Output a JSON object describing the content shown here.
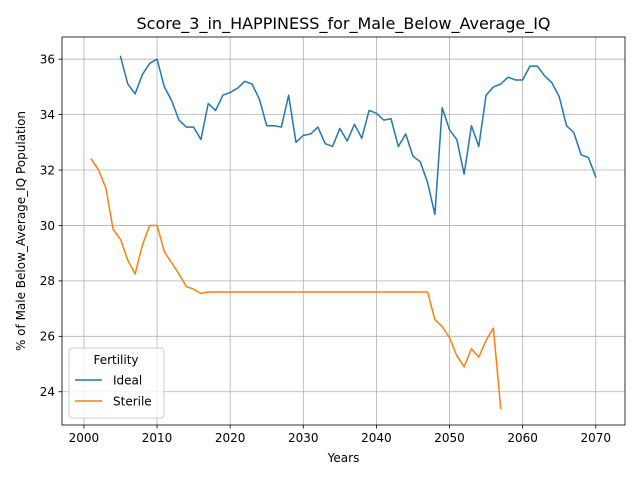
{
  "chart_data": {
    "type": "line",
    "title": "Score_3_in_HAPPINESS_for_Male_Below_Average_IQ",
    "xlabel": "Years",
    "ylabel": "% of Male Below_Average_IQ Population",
    "xlim": [
      1997,
      2074
    ],
    "ylim": [
      22.8,
      36.8
    ],
    "xticks": [
      2000,
      2010,
      2020,
      2030,
      2040,
      2050,
      2060,
      2070
    ],
    "yticks": [
      24,
      26,
      28,
      30,
      32,
      34,
      36
    ],
    "grid": true,
    "legend": {
      "title": "Fertility",
      "placement": "lower-left"
    },
    "series": [
      {
        "name": "Ideal",
        "color": "#1f77b4",
        "points": [
          [
            2005,
            36.1
          ],
          [
            2006,
            35.1
          ],
          [
            2007,
            34.75
          ],
          [
            2008,
            35.45
          ],
          [
            2009,
            35.85
          ],
          [
            2010,
            36.0
          ],
          [
            2011,
            35.0
          ],
          [
            2012,
            34.5
          ],
          [
            2013,
            33.8
          ],
          [
            2014,
            33.55
          ],
          [
            2015,
            33.55
          ],
          [
            2016,
            33.1
          ],
          [
            2017,
            34.4
          ],
          [
            2018,
            34.15
          ],
          [
            2019,
            34.7
          ],
          [
            2020,
            34.8
          ],
          [
            2021,
            34.95
          ],
          [
            2022,
            35.2
          ],
          [
            2023,
            35.1
          ],
          [
            2024,
            34.55
          ],
          [
            2025,
            33.6
          ],
          [
            2026,
            33.6
          ],
          [
            2027,
            33.55
          ],
          [
            2028,
            34.7
          ],
          [
            2029,
            33.0
          ],
          [
            2030,
            33.25
          ],
          [
            2031,
            33.3
          ],
          [
            2032,
            33.55
          ],
          [
            2033,
            32.95
          ],
          [
            2034,
            32.85
          ],
          [
            2035,
            33.5
          ],
          [
            2036,
            33.05
          ],
          [
            2037,
            33.65
          ],
          [
            2038,
            33.15
          ],
          [
            2039,
            34.15
          ],
          [
            2040,
            34.05
          ],
          [
            2041,
            33.8
          ],
          [
            2042,
            33.85
          ],
          [
            2043,
            32.85
          ],
          [
            2044,
            33.3
          ],
          [
            2045,
            32.5
          ],
          [
            2046,
            32.3
          ],
          [
            2047,
            31.55
          ],
          [
            2048,
            30.4
          ],
          [
            2049,
            34.25
          ],
          [
            2050,
            33.45
          ],
          [
            2051,
            33.1
          ],
          [
            2052,
            31.85
          ],
          [
            2053,
            33.6
          ],
          [
            2054,
            32.85
          ],
          [
            2055,
            34.7
          ],
          [
            2056,
            35.0
          ],
          [
            2057,
            35.1
          ],
          [
            2058,
            35.35
          ],
          [
            2059,
            35.25
          ],
          [
            2060,
            35.25
          ],
          [
            2061,
            35.75
          ],
          [
            2062,
            35.75
          ],
          [
            2063,
            35.4
          ],
          [
            2064,
            35.15
          ],
          [
            2065,
            34.65
          ],
          [
            2066,
            33.6
          ],
          [
            2067,
            33.35
          ],
          [
            2068,
            32.55
          ],
          [
            2069,
            32.45
          ],
          [
            2070,
            31.75
          ]
        ]
      },
      {
        "name": "Sterile",
        "color": "#ff7f0e",
        "points": [
          [
            2001,
            32.4
          ],
          [
            2002,
            32.0
          ],
          [
            2003,
            31.35
          ],
          [
            2004,
            29.85
          ],
          [
            2005,
            29.5
          ],
          [
            2006,
            28.75
          ],
          [
            2007,
            28.25
          ],
          [
            2008,
            29.3
          ],
          [
            2009,
            30.0
          ],
          [
            2010,
            30.0
          ],
          [
            2011,
            29.05
          ],
          [
            2012,
            28.65
          ],
          [
            2013,
            28.25
          ],
          [
            2014,
            27.8
          ],
          [
            2015,
            27.7
          ],
          [
            2016,
            27.55
          ],
          [
            2017,
            27.6
          ],
          [
            2018,
            27.6
          ],
          [
            2019,
            27.6
          ],
          [
            2020,
            27.6
          ],
          [
            2021,
            27.6
          ],
          [
            2022,
            27.6
          ],
          [
            2023,
            27.6
          ],
          [
            2024,
            27.6
          ],
          [
            2025,
            27.6
          ],
          [
            2026,
            27.6
          ],
          [
            2027,
            27.6
          ],
          [
            2028,
            27.6
          ],
          [
            2029,
            27.6
          ],
          [
            2030,
            27.6
          ],
          [
            2031,
            27.6
          ],
          [
            2032,
            27.6
          ],
          [
            2033,
            27.6
          ],
          [
            2034,
            27.6
          ],
          [
            2035,
            27.6
          ],
          [
            2036,
            27.6
          ],
          [
            2037,
            27.6
          ],
          [
            2038,
            27.6
          ],
          [
            2039,
            27.6
          ],
          [
            2040,
            27.6
          ],
          [
            2041,
            27.6
          ],
          [
            2042,
            27.6
          ],
          [
            2043,
            27.6
          ],
          [
            2044,
            27.6
          ],
          [
            2045,
            27.6
          ],
          [
            2046,
            27.6
          ],
          [
            2047,
            27.6
          ],
          [
            2048,
            26.6
          ],
          [
            2049,
            26.35
          ],
          [
            2050,
            25.95
          ],
          [
            2051,
            25.3
          ],
          [
            2052,
            24.9
          ],
          [
            2053,
            25.55
          ],
          [
            2054,
            25.25
          ],
          [
            2055,
            25.85
          ],
          [
            2056,
            26.3
          ],
          [
            2057,
            23.4
          ]
        ]
      }
    ]
  }
}
